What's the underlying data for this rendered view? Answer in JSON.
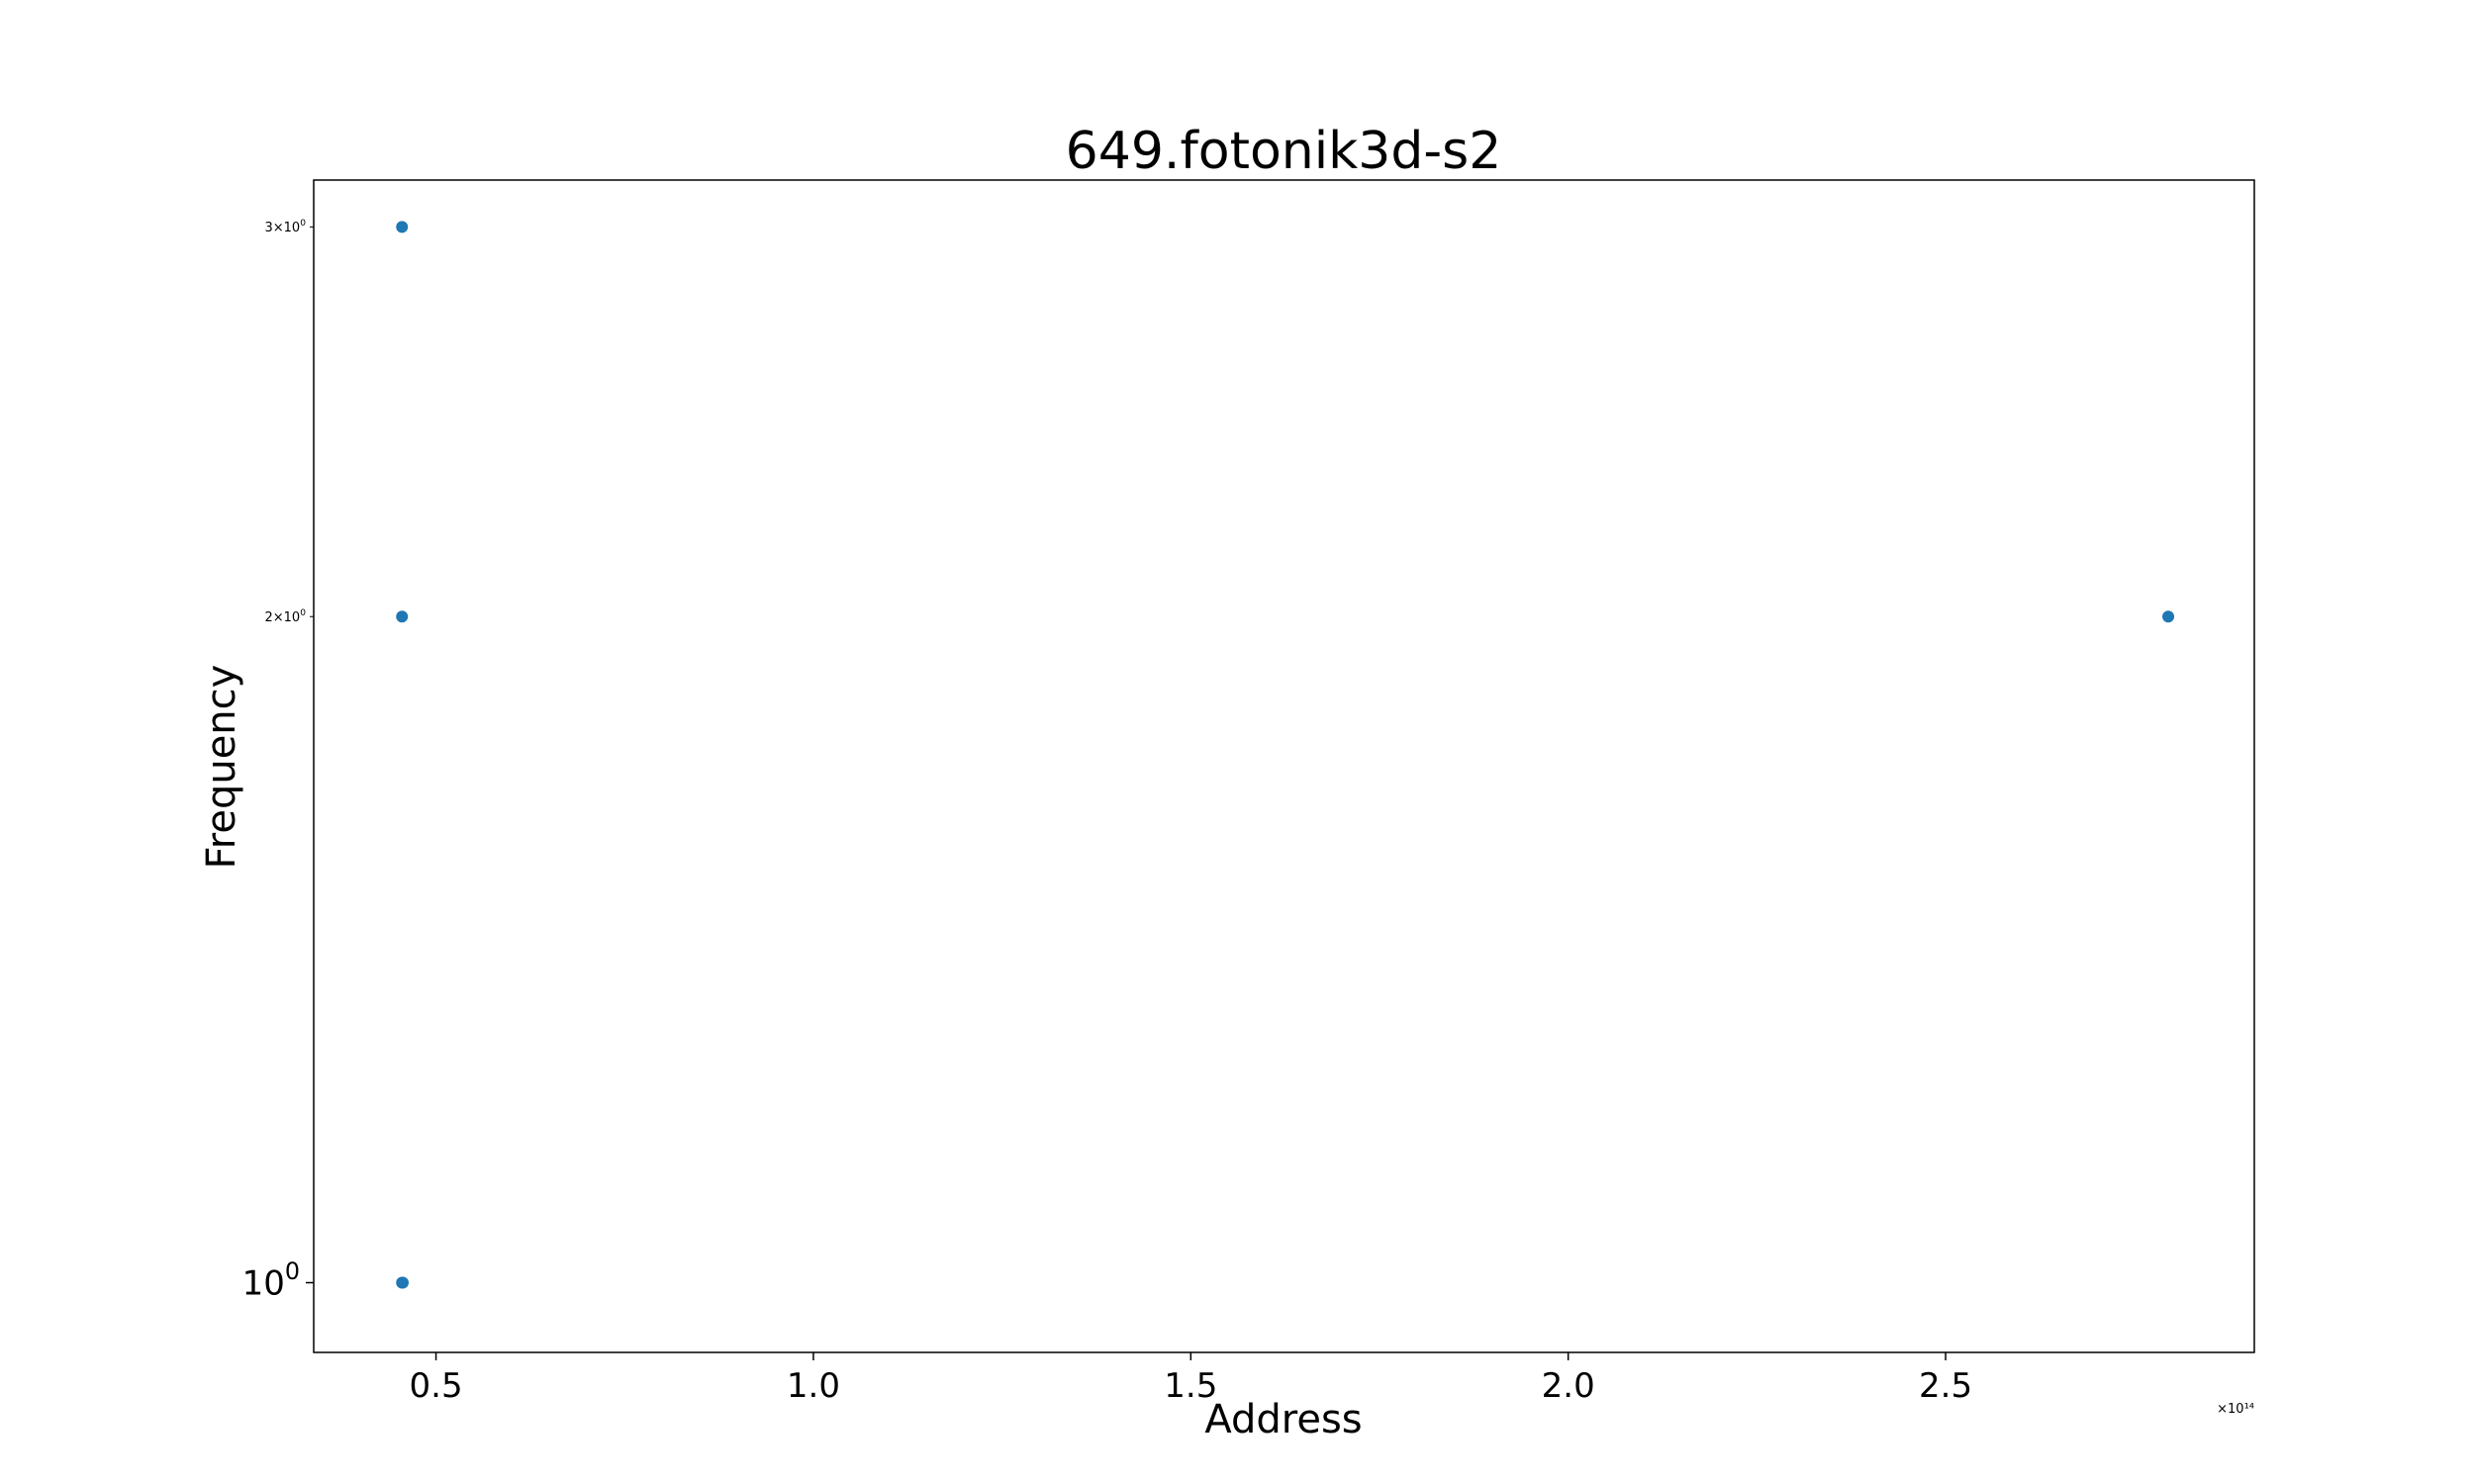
{
  "chart_data": {
    "type": "scatter",
    "title": "649.fotonik3d-s2",
    "xlabel": "Address",
    "ylabel": "Frequency",
    "x_scale": "linear",
    "y_scale": "log",
    "x_offset_label": "×10¹⁴",
    "xlim": [
      33800000000000,
      290900000000000
    ],
    "ylim": [
      0.93,
      3.15
    ],
    "x_ticks": [
      {
        "value": 50000000000000,
        "label": "0.5"
      },
      {
        "value": 100000000000000,
        "label": "1.0"
      },
      {
        "value": 150000000000000,
        "label": "1.5"
      },
      {
        "value": 200000000000000,
        "label": "2.0"
      },
      {
        "value": 250000000000000,
        "label": "2.5"
      }
    ],
    "y_ticks": [
      {
        "value": 1,
        "base": "10",
        "exp": "0",
        "size": "major"
      },
      {
        "value": 2,
        "base": "2×10",
        "exp": "0",
        "size": "minor"
      },
      {
        "value": 3,
        "base": "3×10",
        "exp": "0",
        "size": "minor"
      }
    ],
    "grid": false,
    "marker_color": "#1f77b4",
    "points": [
      {
        "x": 45500000000000,
        "y": 3
      },
      {
        "x": 45500000000000,
        "y": 2
      },
      {
        "x": 45500000000000,
        "y": 1
      },
      {
        "x": 45600000000000,
        "y": 1
      },
      {
        "x": 279500000000000,
        "y": 2
      }
    ]
  }
}
